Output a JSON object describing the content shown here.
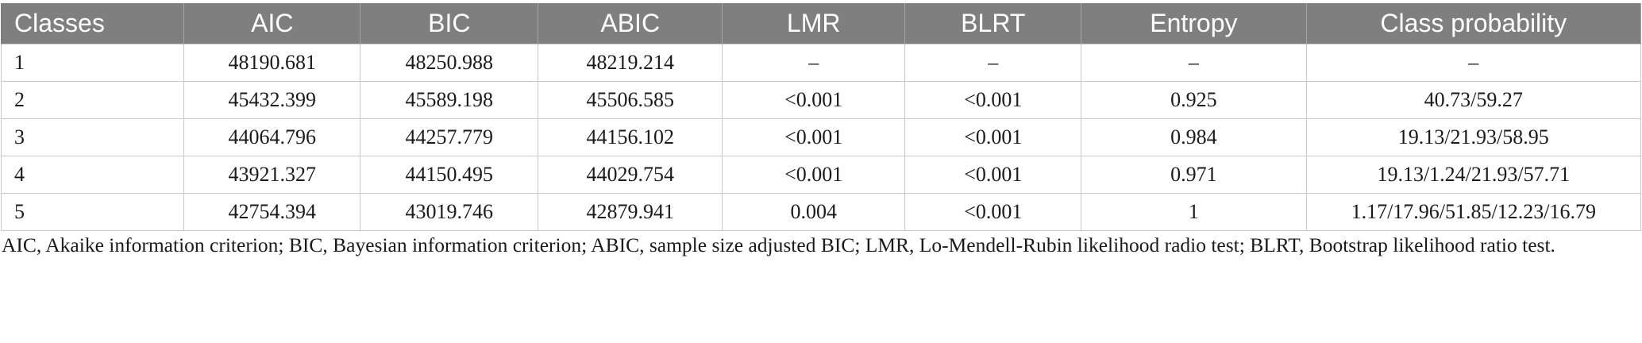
{
  "table": {
    "headers": [
      "Classes",
      "AIC",
      "BIC",
      "ABIC",
      "LMR",
      "BLRT",
      "Entropy",
      "Class probability"
    ],
    "rows": [
      [
        "1",
        "48190.681",
        "48250.988",
        "48219.214",
        "–",
        "–",
        "–",
        "–"
      ],
      [
        "2",
        "45432.399",
        "45589.198",
        "45506.585",
        "<0.001",
        "<0.001",
        "0.925",
        "40.73/59.27"
      ],
      [
        "3",
        "44064.796",
        "44257.779",
        "44156.102",
        "<0.001",
        "<0.001",
        "0.984",
        "19.13/21.93/58.95"
      ],
      [
        "4",
        "43921.327",
        "44150.495",
        "44029.754",
        "<0.001",
        "<0.001",
        "0.971",
        "19.13/1.24/21.93/57.71"
      ],
      [
        "5",
        "42754.394",
        "43019.746",
        "42879.941",
        "0.004",
        "<0.001",
        "1",
        "1.17/17.96/51.85/12.23/16.79"
      ]
    ]
  },
  "footnote": "AIC, Akaike information criterion; BIC, Bayesian information criterion; ABIC, sample size adjusted BIC; LMR, Lo-Mendell-Rubin likelihood radio test; BLRT, Bootstrap likelihood ratio test.",
  "colors": {
    "header_background": "#7f7f7f",
    "header_text": "#ffffff",
    "grid_lines": "#c8c8c8"
  }
}
